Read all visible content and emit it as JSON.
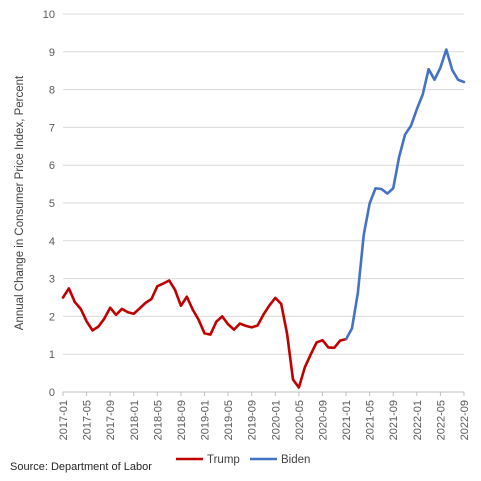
{
  "chart_data": {
    "type": "line",
    "ylabel": "Annual Change in Consumer Price Index, Percent",
    "xlabel": "",
    "ylim": [
      0,
      10
    ],
    "yticks": [
      0,
      1,
      2,
      3,
      4,
      5,
      6,
      7,
      8,
      9,
      10
    ],
    "x_start": "2017-01",
    "x_end": "2022-09",
    "xtick_labels": [
      "2017-01",
      "2017-05",
      "2017-09",
      "2018-01",
      "2018-05",
      "2018-09",
      "2019-01",
      "2019-05",
      "2019-09",
      "2020-01",
      "2020-05",
      "2020-09",
      "2021-01",
      "2021-05",
      "2021-09",
      "2022-01",
      "2022-05",
      "2022-09"
    ],
    "grid": "horizontal",
    "legend_position": "bottom",
    "series": [
      {
        "name": "Trump",
        "color": "#C00000",
        "x": [
          "2017-01",
          "2017-02",
          "2017-03",
          "2017-04",
          "2017-05",
          "2017-06",
          "2017-07",
          "2017-08",
          "2017-09",
          "2017-10",
          "2017-11",
          "2017-12",
          "2018-01",
          "2018-02",
          "2018-03",
          "2018-04",
          "2018-05",
          "2018-06",
          "2018-07",
          "2018-08",
          "2018-09",
          "2018-10",
          "2018-11",
          "2018-12",
          "2019-01",
          "2019-02",
          "2019-03",
          "2019-04",
          "2019-05",
          "2019-06",
          "2019-07",
          "2019-08",
          "2019-09",
          "2019-10",
          "2019-11",
          "2019-12",
          "2020-01",
          "2020-02",
          "2020-03",
          "2020-04",
          "2020-05",
          "2020-06",
          "2020-07",
          "2020-08",
          "2020-09",
          "2020-10",
          "2020-11",
          "2020-12",
          "2021-01"
        ],
        "values": [
          2.5,
          2.74,
          2.38,
          2.2,
          1.87,
          1.63,
          1.73,
          1.94,
          2.23,
          2.04,
          2.2,
          2.11,
          2.07,
          2.21,
          2.36,
          2.46,
          2.8,
          2.87,
          2.95,
          2.7,
          2.28,
          2.52,
          2.18,
          1.91,
          1.55,
          1.52,
          1.86,
          2.0,
          1.79,
          1.65,
          1.81,
          1.75,
          1.71,
          1.76,
          2.05,
          2.29,
          2.49,
          2.33,
          1.54,
          0.33,
          0.12,
          0.65,
          0.99,
          1.31,
          1.37,
          1.18,
          1.17,
          1.36,
          1.4
        ]
      },
      {
        "name": "Biden",
        "color": "#4472C4",
        "x": [
          "2021-01",
          "2021-02",
          "2021-03",
          "2021-04",
          "2021-05",
          "2021-06",
          "2021-07",
          "2021-08",
          "2021-09",
          "2021-10",
          "2021-11",
          "2021-12",
          "2022-01",
          "2022-02",
          "2022-03",
          "2022-04",
          "2022-05",
          "2022-06",
          "2022-07",
          "2022-08",
          "2022-09"
        ],
        "values": [
          1.4,
          1.68,
          2.62,
          4.16,
          4.99,
          5.39,
          5.37,
          5.25,
          5.39,
          6.22,
          6.81,
          7.04,
          7.48,
          7.87,
          8.54,
          8.26,
          8.58,
          9.06,
          8.52,
          8.26,
          8.2
        ]
      }
    ]
  },
  "source": "Source: Department of Labor"
}
